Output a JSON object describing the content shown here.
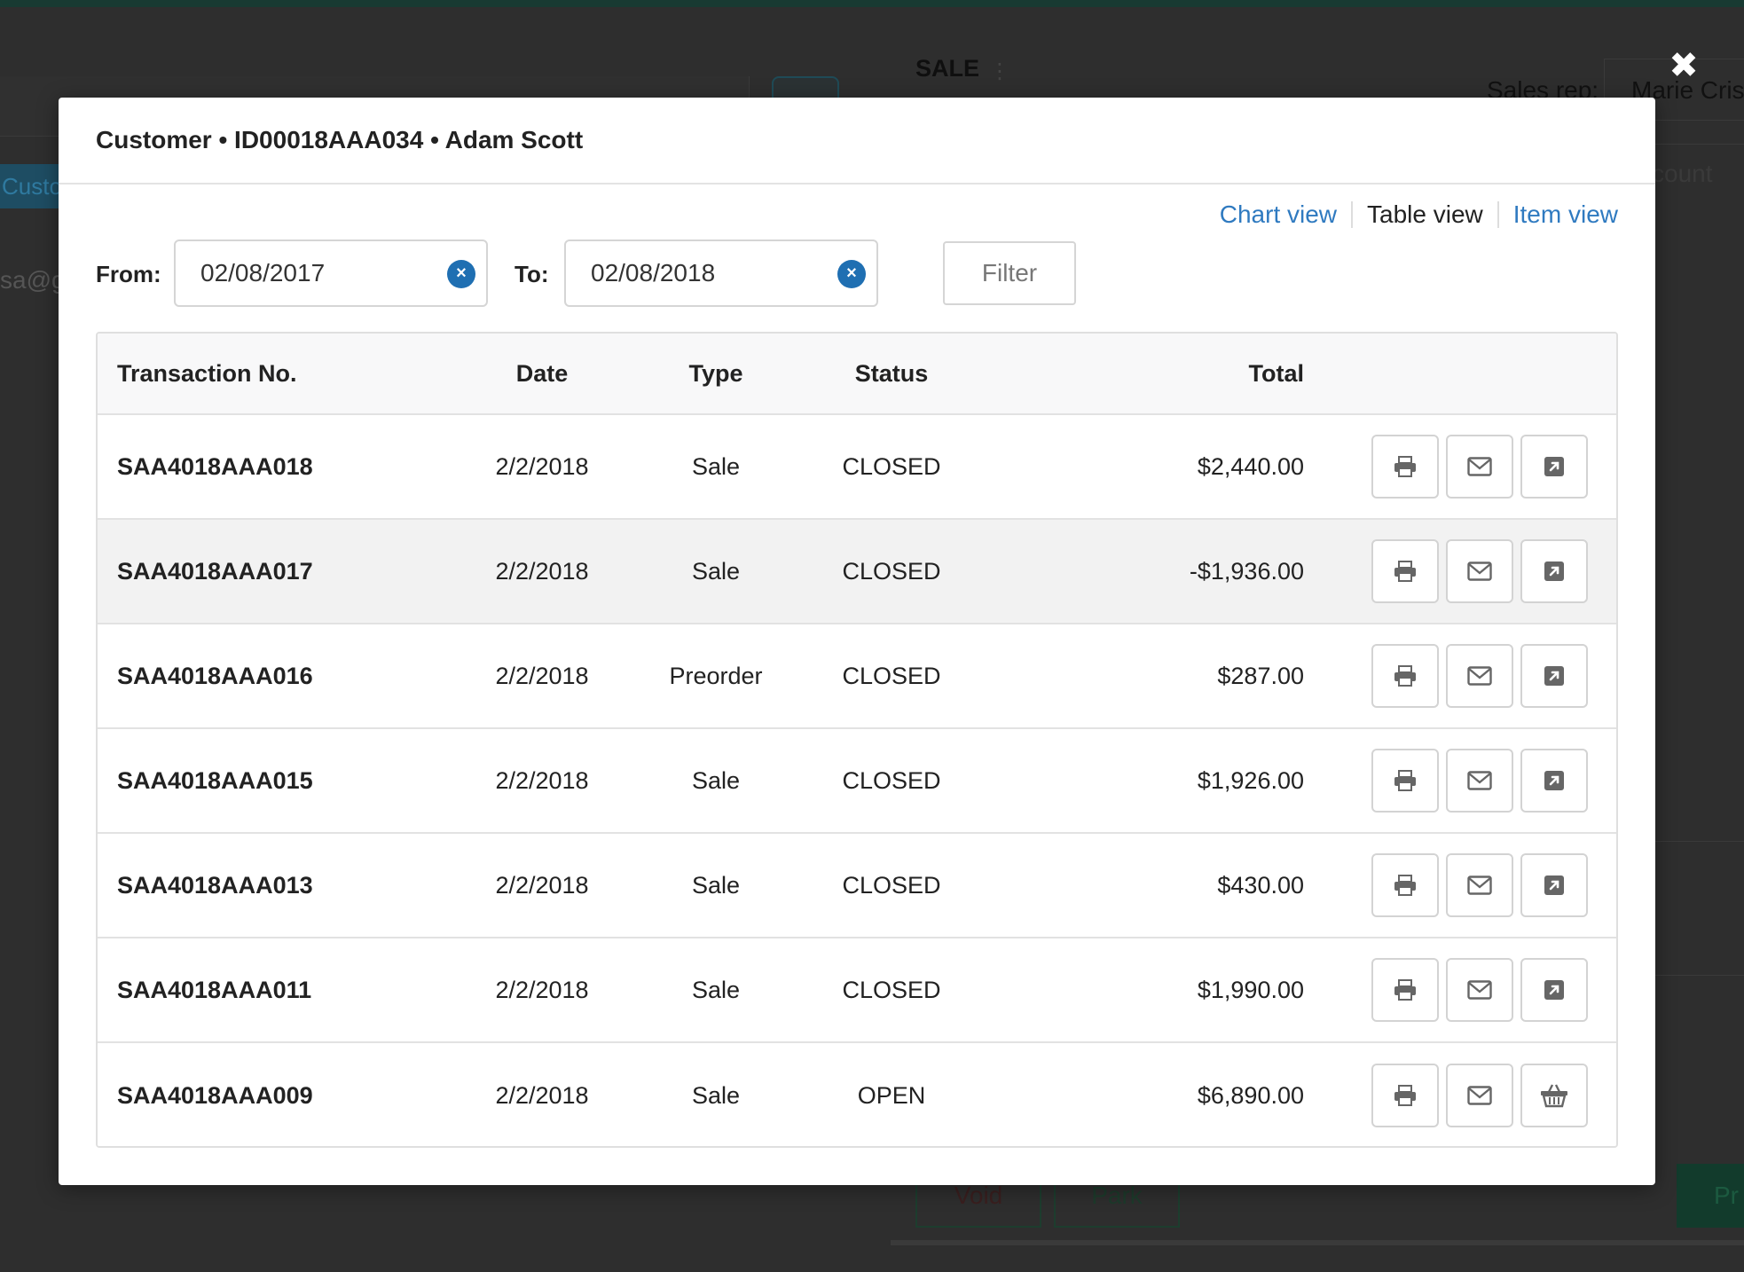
{
  "background": {
    "section_title": "SALE",
    "tab_label": "Custo",
    "email_fragment": "sa@gi",
    "sales_rep_label": "Sales rep:",
    "sales_rep_value": "Marie Cris",
    "discount_fragment": "count",
    "void_label": "Void",
    "park_label": "Park",
    "pay_fragment": "Pr"
  },
  "modal": {
    "title": "Customer • ID00018AAA034 • Adam Scott",
    "views": {
      "chart": "Chart view",
      "table": "Table view",
      "item": "Item view",
      "active": "table"
    },
    "filter": {
      "from_label": "From:",
      "from_value": "02/08/2017",
      "to_label": "To:",
      "to_value": "02/08/2018",
      "clear_glyph": "×",
      "button_label": "Filter"
    },
    "table": {
      "headers": {
        "transaction_no": "Transaction No.",
        "date": "Date",
        "type": "Type",
        "status": "Status",
        "total": "Total"
      },
      "rows": [
        {
          "no": "SAA4018AAA018",
          "date": "2/2/2018",
          "type": "Sale",
          "status": "CLOSED",
          "total": "$2,440.00",
          "third_action": "open-icon"
        },
        {
          "no": "SAA4018AAA017",
          "date": "2/2/2018",
          "type": "Sale",
          "status": "CLOSED",
          "total": "-$1,936.00",
          "third_action": "open-icon"
        },
        {
          "no": "SAA4018AAA016",
          "date": "2/2/2018",
          "type": "Preorder",
          "status": "CLOSED",
          "total": "$287.00",
          "third_action": "open-icon"
        },
        {
          "no": "SAA4018AAA015",
          "date": "2/2/2018",
          "type": "Sale",
          "status": "CLOSED",
          "total": "$1,926.00",
          "third_action": "open-icon"
        },
        {
          "no": "SAA4018AAA013",
          "date": "2/2/2018",
          "type": "Sale",
          "status": "CLOSED",
          "total": "$430.00",
          "third_action": "open-icon"
        },
        {
          "no": "SAA4018AAA011",
          "date": "2/2/2018",
          "type": "Sale",
          "status": "CLOSED",
          "total": "$1,990.00",
          "third_action": "open-icon"
        },
        {
          "no": "SAA4018AAA009",
          "date": "2/2/2018",
          "type": "Sale",
          "status": "OPEN",
          "total": "$6,890.00",
          "third_action": "basket-icon"
        }
      ]
    }
  },
  "close_glyph": "✖",
  "colors": {
    "link": "#2f7ac0",
    "clear_button": "#1f6fb2",
    "overlay": "#2e2e2e"
  }
}
